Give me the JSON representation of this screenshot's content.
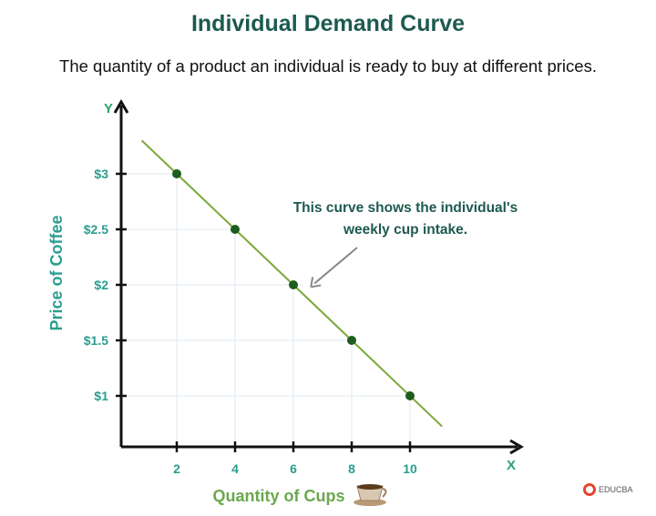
{
  "header": {
    "title": "Individual Demand Curve",
    "subtitle": "The quantity of a product an individual is ready to buy at different prices."
  },
  "chart_data": {
    "type": "line",
    "title": "Individual Demand Curve",
    "xlabel": "Quantity of Cups",
    "ylabel": "Price of Coffee",
    "x_axis_letter": "X",
    "y_axis_letter": "Y",
    "x": [
      2,
      4,
      6,
      8,
      10
    ],
    "y": [
      3,
      2.5,
      2,
      1.5,
      1
    ],
    "x_ticks": [
      "2",
      "4",
      "6",
      "8",
      "10"
    ],
    "y_ticks": [
      "$1",
      "$1.5",
      "$2",
      "$2.5",
      "$3"
    ],
    "y_tick_values": [
      1,
      1.5,
      2,
      2.5,
      3
    ],
    "line_extent_x": [
      0.8,
      11.1
    ],
    "xlim": [
      0,
      13.8
    ],
    "ylim": [
      0.55,
      3.65
    ],
    "grid": true,
    "annotation": {
      "lines": [
        "This curve shows the individual's",
        "weekly cup intake."
      ],
      "points_to_x": 6.6,
      "points_to_y": 1.98
    },
    "colors": {
      "line": "#7ba83a",
      "points": "#1f5c1f",
      "tick_labels": "#2a9d8f",
      "ylabel": "#2a9d8f",
      "xlabel": "#6aa84f",
      "annotation": "#1d5a50",
      "grid": "#dfe8f0"
    }
  },
  "decor": {
    "cup_icon": "coffee-cup-icon",
    "logo": "EDUCBA"
  }
}
